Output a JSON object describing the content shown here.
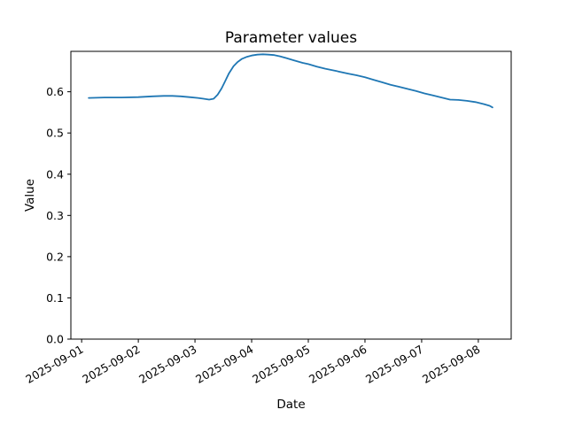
{
  "chart_data": {
    "type": "line",
    "title": "Parameter values",
    "xlabel": "Date",
    "ylabel": "Value",
    "grid": false,
    "legend": null,
    "background": "#ffffff",
    "axes_color": "#000000",
    "line_color": "#1f77b4",
    "x_tick_labels": [
      "2025-09-01",
      "2025-09-02",
      "2025-09-03",
      "2025-09-04",
      "2025-09-05",
      "2025-09-06",
      "2025-09-07",
      "2025-09-08"
    ],
    "x_tick_days": [
      0,
      1,
      2,
      3,
      4,
      5,
      6,
      7
    ],
    "x_tick_rotation_deg": 30,
    "y_tick_labels": [
      "0.0",
      "0.1",
      "0.2",
      "0.3",
      "0.4",
      "0.5",
      "0.6"
    ],
    "y_ticks": [
      0.0,
      0.1,
      0.2,
      0.3,
      0.4,
      0.5,
      0.6
    ],
    "xlim_days": [
      -0.19,
      7.58
    ],
    "ylim": [
      0,
      0.698
    ],
    "series": [
      {
        "name": "parameter-values",
        "x_unit": "days since 2025-09-01 00:00",
        "points": [
          [
            0.125,
            0.585
          ],
          [
            0.4,
            0.586
          ],
          [
            0.7,
            0.586
          ],
          [
            1.0,
            0.587
          ],
          [
            1.25,
            0.589
          ],
          [
            1.45,
            0.59
          ],
          [
            1.6,
            0.59
          ],
          [
            1.75,
            0.589
          ],
          [
            1.9,
            0.587
          ],
          [
            2.05,
            0.585
          ],
          [
            2.15,
            0.583
          ],
          [
            2.25,
            0.581
          ],
          [
            2.33,
            0.583
          ],
          [
            2.4,
            0.593
          ],
          [
            2.47,
            0.608
          ],
          [
            2.53,
            0.625
          ],
          [
            2.6,
            0.645
          ],
          [
            2.68,
            0.662
          ],
          [
            2.75,
            0.672
          ],
          [
            2.83,
            0.68
          ],
          [
            2.92,
            0.685
          ],
          [
            3.0,
            0.688
          ],
          [
            3.1,
            0.69
          ],
          [
            3.2,
            0.691
          ],
          [
            3.3,
            0.69
          ],
          [
            3.4,
            0.689
          ],
          [
            3.5,
            0.686
          ],
          [
            3.6,
            0.682
          ],
          [
            3.75,
            0.676
          ],
          [
            3.9,
            0.67
          ],
          [
            4.0,
            0.667
          ],
          [
            4.15,
            0.661
          ],
          [
            4.3,
            0.656
          ],
          [
            4.5,
            0.65
          ],
          [
            4.7,
            0.644
          ],
          [
            4.85,
            0.64
          ],
          [
            5.0,
            0.635
          ],
          [
            5.15,
            0.629
          ],
          [
            5.3,
            0.623
          ],
          [
            5.45,
            0.617
          ],
          [
            5.6,
            0.612
          ],
          [
            5.75,
            0.607
          ],
          [
            5.9,
            0.602
          ],
          [
            6.05,
            0.596
          ],
          [
            6.2,
            0.591
          ],
          [
            6.35,
            0.586
          ],
          [
            6.5,
            0.581
          ],
          [
            6.65,
            0.58
          ],
          [
            6.8,
            0.578
          ],
          [
            6.95,
            0.575
          ],
          [
            7.1,
            0.57
          ],
          [
            7.2,
            0.566
          ],
          [
            7.25,
            0.562
          ]
        ]
      }
    ]
  }
}
